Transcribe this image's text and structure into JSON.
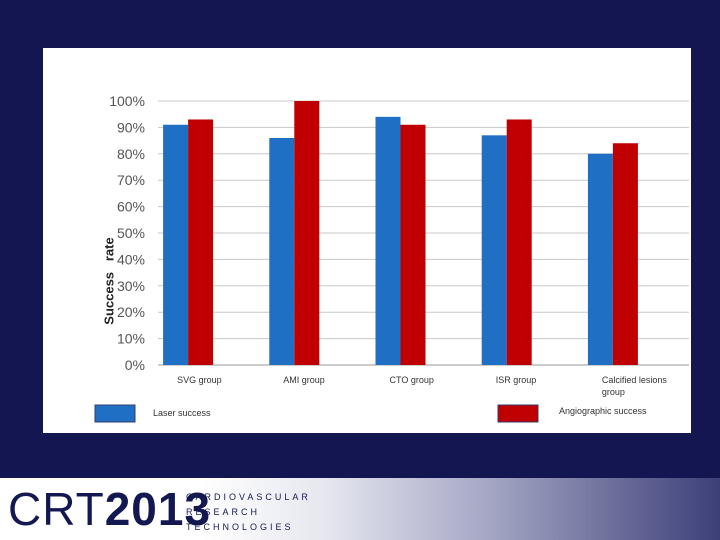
{
  "chart_data": {
    "type": "bar",
    "categories": [
      "SVG group",
      "AMI group",
      "CTO group",
      "ISR group",
      "Calcified lesions group"
    ],
    "series": [
      {
        "name": "Laser success",
        "color": "#1f6fc5",
        "values": [
          91,
          86,
          94,
          87,
          80
        ]
      },
      {
        "name": "Angiographic success",
        "color": "#c00000",
        "values": [
          93,
          100,
          91,
          93,
          84
        ]
      }
    ],
    "yticks": [
      "0%",
      "10%",
      "20%",
      "30%",
      "40%",
      "50%",
      "60%",
      "70%",
      "80%",
      "90%",
      "100%"
    ],
    "ylabel": "Success   rate",
    "ylim": [
      0,
      100
    ],
    "grid": true,
    "legend": "bottom"
  },
  "footer": {
    "logo_crt": "CRT",
    "logo_year": "2013",
    "logo_line1": "CARDIOVASCULAR",
    "logo_line2": "RESEARCH",
    "logo_line3": "TECHNOLOGIES"
  }
}
